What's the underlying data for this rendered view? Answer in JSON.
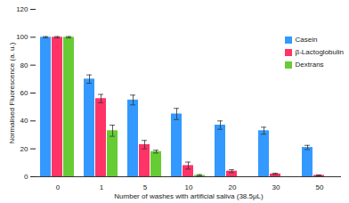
{
  "chart_data": {
    "type": "bar",
    "categories": [
      "0",
      "1",
      "5",
      "10",
      "20",
      "30",
      "50"
    ],
    "series": [
      {
        "name": "Casein",
        "color": "#3399ff",
        "values": [
          100,
          70,
          55,
          45,
          37,
          33,
          21
        ],
        "errors": [
          0.5,
          3,
          3.5,
          4,
          3,
          2.5,
          1.5
        ]
      },
      {
        "name": "β-Lactoglobulin",
        "color": "#ff3366",
        "values": [
          100,
          56,
          23,
          8,
          4,
          2,
          1
        ],
        "errors": [
          0.5,
          3,
          3,
          2.5,
          1,
          0.5,
          0.3
        ]
      },
      {
        "name": "Dextrans",
        "color": "#66cc33",
        "values": [
          100,
          33,
          18,
          1,
          null,
          null,
          null
        ],
        "errors": [
          0.5,
          4,
          1,
          0.5,
          null,
          null,
          null
        ]
      }
    ],
    "x_label": "Number of washes with artificial saliva (38.5μL)",
    "y_label": "Normalised Fluorescence (a. u.)",
    "ylim": [
      0,
      120
    ],
    "yticks": [
      0,
      20,
      40,
      60,
      80,
      100,
      120
    ],
    "grid": false,
    "legend": "right"
  }
}
